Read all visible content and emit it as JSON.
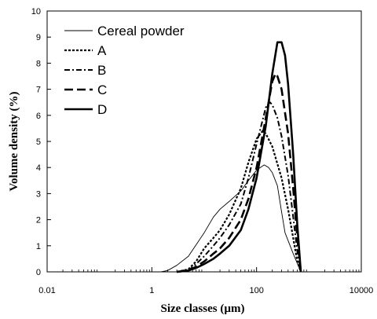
{
  "chart_data": {
    "type": "line",
    "xlabel": "Size classes (µm)",
    "ylabel": "Volume density (%)",
    "x_scale": "log",
    "xlim": [
      0.01,
      10000
    ],
    "ylim": [
      0,
      10
    ],
    "x_ticks": [
      "0.01",
      "1",
      "100",
      "10000"
    ],
    "y_ticks": [
      "0",
      "1",
      "2",
      "3",
      "4",
      "5",
      "6",
      "7",
      "8",
      "9",
      "10"
    ],
    "grid": false,
    "legend_position": "top-left",
    "series": [
      {
        "name": "Cereal powder",
        "style": "thin-solid",
        "x": [
          1,
          1.5,
          2,
          3,
          5,
          10,
          15,
          20,
          30,
          50,
          70,
          100,
          140,
          170,
          200,
          250,
          300,
          350,
          500,
          700
        ],
        "y": [
          0,
          0,
          0.05,
          0.25,
          0.6,
          1.5,
          2.1,
          2.4,
          2.7,
          3.1,
          3.5,
          3.9,
          4.1,
          4.0,
          3.8,
          3.3,
          2.3,
          1.5,
          0.7,
          0
        ]
      },
      {
        "name": "A",
        "style": "dotted",
        "x": [
          3,
          5,
          7,
          10,
          15,
          20,
          30,
          50,
          70,
          100,
          130,
          150,
          200,
          300,
          400,
          500,
          600,
          700
        ],
        "y": [
          0,
          0.1,
          0.4,
          0.9,
          1.3,
          1.6,
          2.2,
          3.2,
          4.2,
          5.1,
          5.4,
          5.3,
          4.8,
          3.6,
          2.4,
          1.3,
          0.4,
          0
        ]
      },
      {
        "name": "B",
        "style": "dash-dot",
        "x": [
          3,
          5,
          7,
          10,
          15,
          20,
          30,
          50,
          70,
          100,
          150,
          180,
          200,
          250,
          300,
          400,
          500,
          600,
          700
        ],
        "y": [
          0,
          0.05,
          0.3,
          0.6,
          1.0,
          1.3,
          1.8,
          2.6,
          3.6,
          4.9,
          6.3,
          6.5,
          6.4,
          5.9,
          5.2,
          3.7,
          2.1,
          0.8,
          0
        ]
      },
      {
        "name": "C",
        "style": "long-dash",
        "x": [
          3,
          5,
          7,
          10,
          15,
          20,
          30,
          50,
          70,
          100,
          150,
          200,
          230,
          250,
          300,
          400,
          500,
          600,
          700
        ],
        "y": [
          0,
          0.05,
          0.2,
          0.4,
          0.7,
          0.9,
          1.3,
          2.0,
          2.8,
          4.0,
          5.9,
          7.3,
          7.6,
          7.5,
          7.0,
          5.3,
          3.2,
          1.3,
          0
        ]
      },
      {
        "name": "D",
        "style": "thick-solid",
        "x": [
          3,
          5,
          7,
          10,
          15,
          20,
          30,
          50,
          70,
          100,
          150,
          200,
          250,
          300,
          350,
          400,
          500,
          600,
          700
        ],
        "y": [
          0,
          0.05,
          0.15,
          0.3,
          0.5,
          0.7,
          1.0,
          1.6,
          2.4,
          3.6,
          5.6,
          7.6,
          8.8,
          8.8,
          8.3,
          7.2,
          4.5,
          1.8,
          0
        ]
      }
    ]
  }
}
